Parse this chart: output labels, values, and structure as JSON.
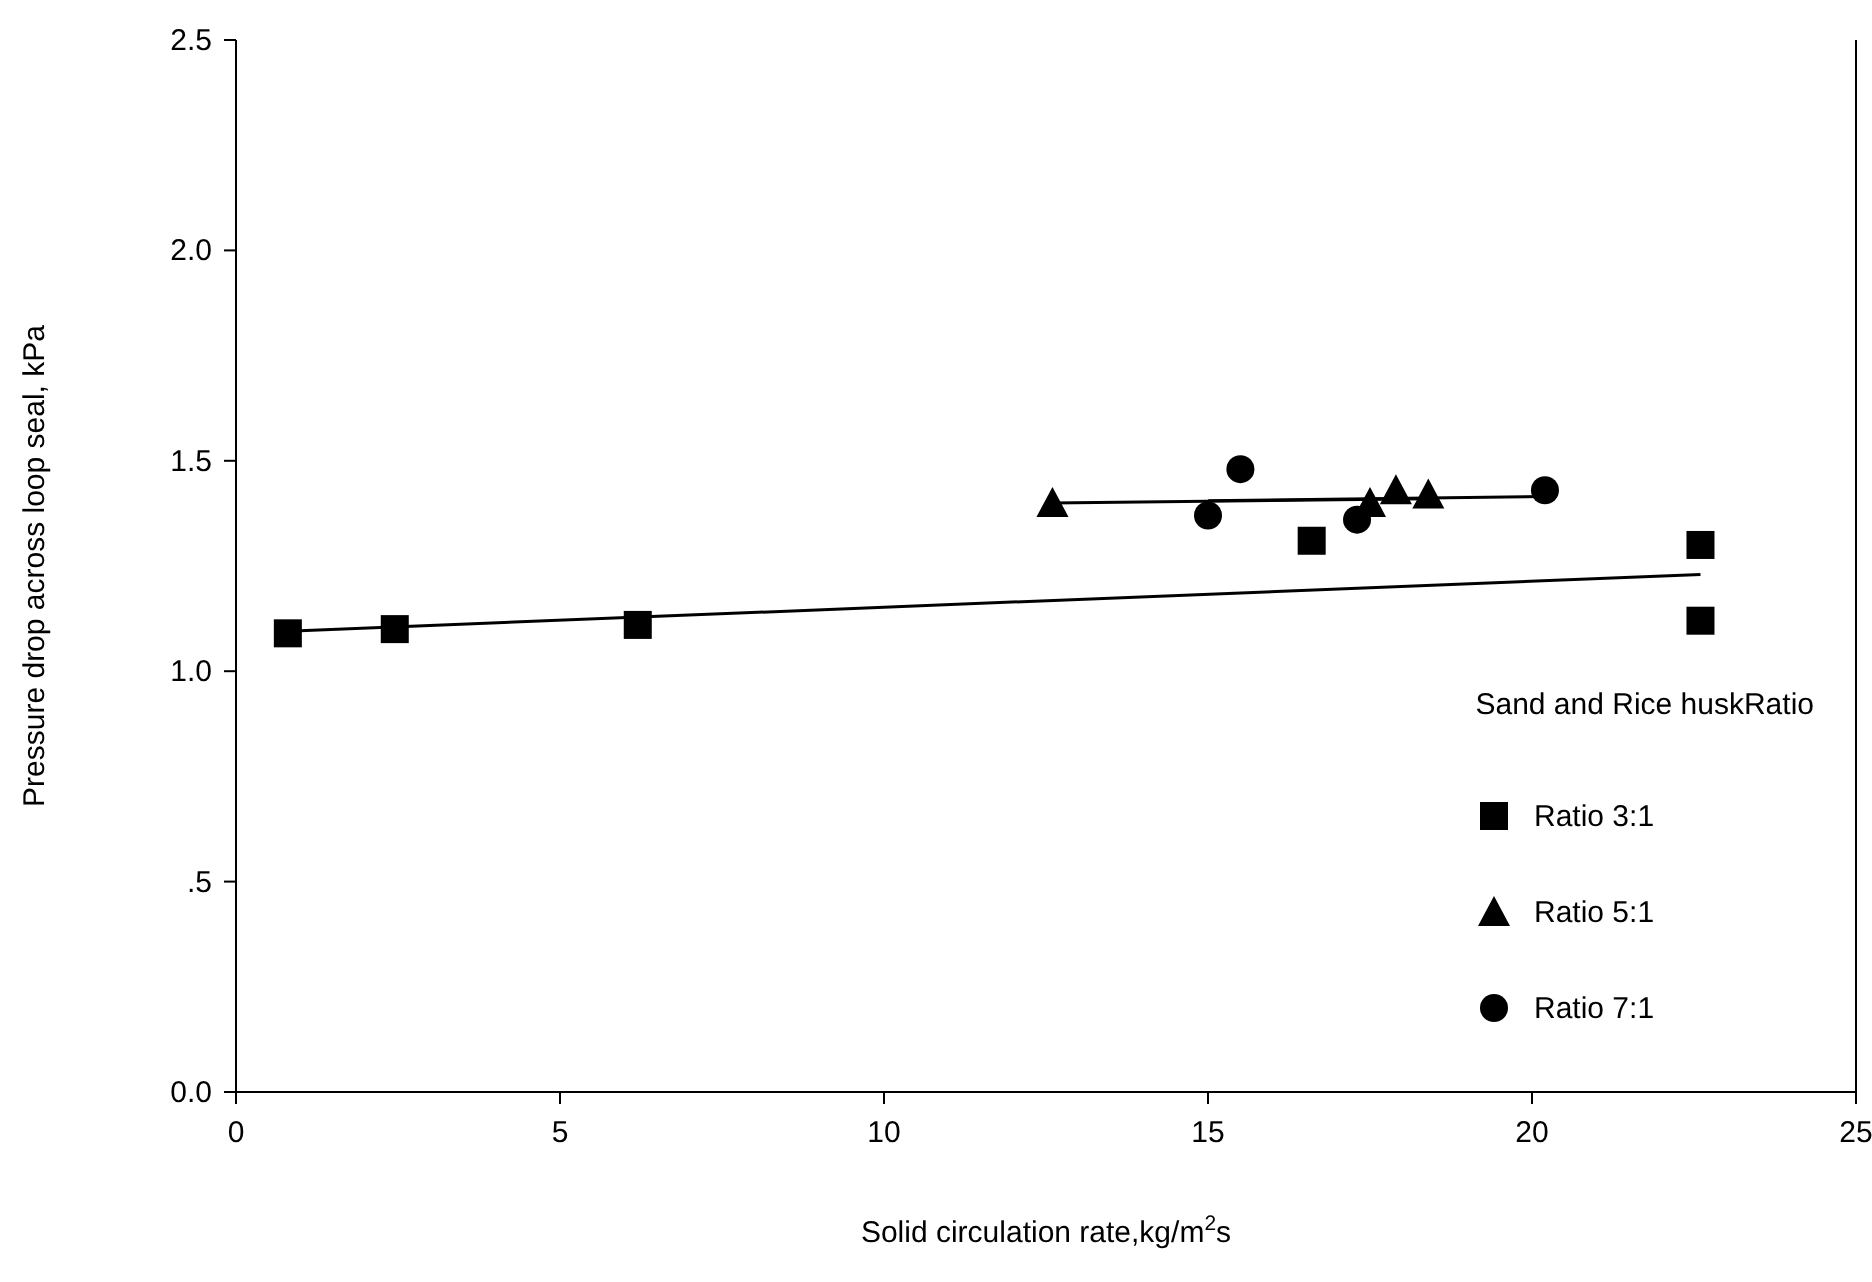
{
  "chart_data": {
    "type": "scatter",
    "xlabel": "Solid circulation rate,kg/m$^{2}$s",
    "ylabel": "Pressure drop across loop seal, kPa",
    "legend_title": "Sand and Rice huskRatio",
    "legend": "right",
    "grid": false,
    "xlim": [
      0,
      25
    ],
    "xticks": [
      0,
      5,
      10,
      15,
      20,
      25
    ],
    "ylim": [
      0,
      2.5
    ],
    "yticks": [
      {
        "value": 0,
        "label": "0.0"
      },
      {
        "value": 0.5,
        "label": ".5"
      },
      {
        "value": 1.0,
        "label": "1.0"
      },
      1.5,
      {
        "value": 2.0,
        "label": "2.0"
      },
      2.5
    ],
    "series": [
      {
        "name": "Ratio 3:1",
        "color": "#000000",
        "marker": "square",
        "x": [
          0.8,
          2.45,
          6.2,
          16.6,
          22.6,
          22.6
        ],
        "values": [
          1.09,
          1.1,
          1.11,
          1.31,
          1.3,
          1.12
        ]
      },
      {
        "name": "Ratio 5:1",
        "color": "#000000",
        "marker": "triangle",
        "x": [
          12.6,
          17.5,
          17.9,
          18.4
        ],
        "values": [
          1.4,
          1.4,
          1.43,
          1.42
        ]
      },
      {
        "name": "Ratio 7:1",
        "color": "#000000",
        "marker": "circle",
        "x": [
          15.0,
          15.5,
          17.3,
          20.2
        ],
        "values": [
          1.37,
          1.48,
          1.36,
          1.43
        ]
      },
      {
        "type": "line",
        "color": "#000000",
        "marker": "none",
        "x": [
          0.8,
          22.6
        ],
        "values": [
          1.095,
          1.23
        ]
      },
      {
        "type": "line",
        "color": "#000000",
        "marker": "none",
        "x": [
          12.6,
          18.4
        ],
        "values": [
          1.4,
          1.41
        ]
      },
      {
        "type": "line",
        "color": "#000000",
        "marker": "none",
        "x": [
          15.0,
          20.2
        ],
        "values": [
          1.405,
          1.415
        ]
      }
    ]
  }
}
